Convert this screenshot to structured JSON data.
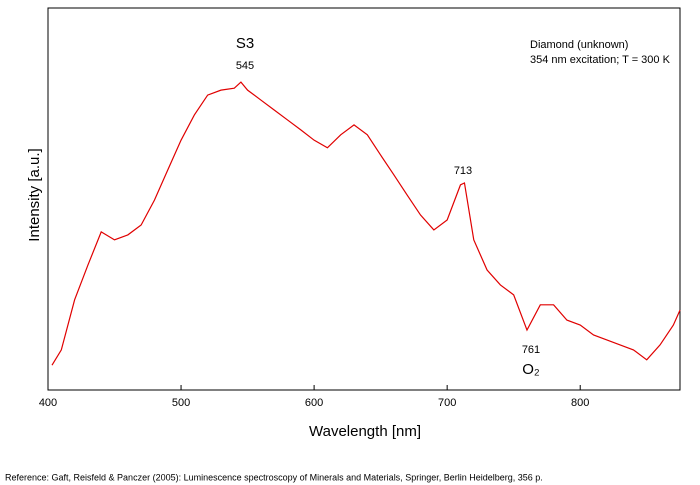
{
  "chart_data": {
    "type": "line",
    "title": "Diamond (unknown)",
    "subtitle": "354 nm excitation; T = 300 K",
    "x_label": "Wavelength [nm]",
    "y_label": "Intensity [a.u.]",
    "annotations": [
      "S3",
      "545",
      "713",
      "761",
      "O₂"
    ],
    "footnote": "Reference: Gaft, Reisfeld & Panczer (2005): Luminescence spectroscopy of Minerals and Materials, Springer, Berlin Heidelberg, 356 p.",
    "xlim": [
      400,
      875
    ],
    "xticks": [
      400,
      500,
      600,
      700,
      800
    ],
    "ylim": [
      0,
      100
    ],
    "series": [
      {
        "name": "Intensity",
        "color": "#e00000",
        "x": [
          403,
          410,
          420,
          430,
          440,
          450,
          460,
          470,
          480,
          490,
          500,
          510,
          520,
          530,
          540,
          545,
          550,
          560,
          570,
          580,
          590,
          600,
          610,
          620,
          630,
          640,
          650,
          660,
          670,
          680,
          690,
          700,
          710,
          713,
          720,
          730,
          740,
          750,
          760,
          770,
          780,
          790,
          800,
          810,
          820,
          830,
          840,
          850,
          860,
          870,
          875
        ],
        "values": [
          6.5,
          10.5,
          23.6,
          32.7,
          41.4,
          39.3,
          40.6,
          43.2,
          49.7,
          57.6,
          65.4,
          72,
          77.2,
          78.5,
          79,
          80.6,
          78.5,
          75.9,
          73.3,
          70.7,
          68.1,
          65.4,
          63.4,
          66.8,
          69.4,
          66.8,
          61.5,
          56.3,
          51,
          45.8,
          41.9,
          44.5,
          53.7,
          54.2,
          39.3,
          31.4,
          27.5,
          24.9,
          15.7,
          22.3,
          22.3,
          18.3,
          17,
          14.4,
          13.1,
          11.8,
          10.5,
          7.9,
          11.8,
          17,
          20.9
        ]
      }
    ]
  }
}
